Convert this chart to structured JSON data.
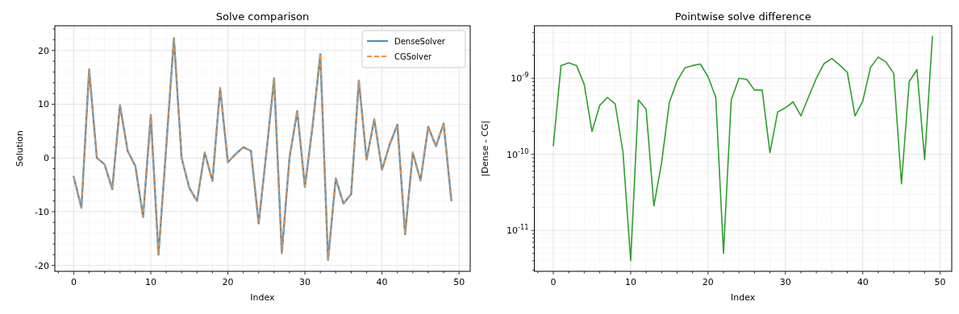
{
  "chart_data": [
    {
      "type": "line",
      "title": "Solve comparison",
      "xlabel": "Index",
      "ylabel": "Solution",
      "x": [
        0,
        1,
        2,
        3,
        4,
        5,
        6,
        7,
        8,
        9,
        10,
        11,
        12,
        13,
        14,
        15,
        16,
        17,
        18,
        19,
        20,
        21,
        22,
        23,
        24,
        25,
        26,
        27,
        28,
        29,
        30,
        31,
        32,
        33,
        34,
        35,
        36,
        37,
        38,
        39,
        40,
        41,
        42,
        43,
        44,
        45,
        46,
        47,
        48,
        49
      ],
      "series": [
        {
          "name": "DenseSolver",
          "color": "#4a90c2",
          "line_style": "solid",
          "values": [
            -3.5,
            -9.3,
            16.5,
            0,
            -1.2,
            -5.8,
            9.8,
            1.3,
            -1.5,
            -11,
            8,
            -18,
            2,
            22.3,
            0,
            -5.6,
            -8,
            1,
            -4.3,
            13,
            -0.8,
            0.7,
            2,
            1.3,
            -12.2,
            1,
            14.8,
            -17.7,
            0,
            8.7,
            -5.4,
            6,
            19.3,
            -19,
            -3.8,
            -8.5,
            -6.7,
            14.4,
            -0.3,
            7.2,
            -2.2,
            2.5,
            6.2,
            -14.2,
            1,
            -4.2,
            5.8,
            2.2,
            6.4,
            -7.9
          ]
        },
        {
          "name": "CGSolver",
          "color": "#f0913f",
          "line_style": "dashed",
          "values": [
            -3.5,
            -9.3,
            16.5,
            0,
            -1.2,
            -5.8,
            9.8,
            1.3,
            -1.5,
            -11,
            8,
            -18,
            2,
            22.3,
            0,
            -5.6,
            -8,
            1,
            -4.3,
            13,
            -0.8,
            0.7,
            2,
            1.3,
            -12.2,
            1,
            14.8,
            -17.7,
            0,
            8.7,
            -5.4,
            6,
            19.3,
            -19,
            -3.8,
            -8.5,
            -6.7,
            14.4,
            -0.3,
            7.2,
            -2.2,
            2.5,
            6.2,
            -14.2,
            1,
            -4.2,
            5.8,
            2.2,
            6.4,
            -7.9
          ]
        }
      ],
      "xlim": [
        -2.45,
        51.45
      ],
      "ylim": [
        -21.1,
        24.6
      ],
      "xticks": [
        0,
        10,
        20,
        30,
        40,
        50,
        {
          "value": -2,
          "label": null
        },
        {
          "value": 2,
          "label": null
        },
        {
          "value": 4,
          "label": null
        },
        {
          "value": 6,
          "label": null
        },
        {
          "value": 8,
          "label": null
        },
        {
          "value": 12,
          "label": null
        },
        {
          "value": 14,
          "label": null
        },
        {
          "value": 16,
          "label": null
        },
        {
          "value": 18,
          "label": null
        },
        {
          "value": 22,
          "label": null
        },
        {
          "value": 24,
          "label": null
        },
        {
          "value": 26,
          "label": null
        },
        {
          "value": 28,
          "label": null
        },
        {
          "value": 32,
          "label": null
        },
        {
          "value": 34,
          "label": null
        },
        {
          "value": 36,
          "label": null
        },
        {
          "value": 38,
          "label": null
        },
        {
          "value": 42,
          "label": null
        },
        {
          "value": 44,
          "label": null
        },
        {
          "value": 46,
          "label": null
        },
        {
          "value": 48,
          "label": null
        }
      ],
      "yticks": [
        -20,
        -10,
        0,
        10,
        20,
        {
          "value": -18,
          "label": null
        },
        {
          "value": -16,
          "label": null
        },
        {
          "value": -14,
          "label": null
        },
        {
          "value": -12,
          "label": null
        },
        {
          "value": -8,
          "label": null
        },
        {
          "value": -6,
          "label": null
        },
        {
          "value": -4,
          "label": null
        },
        {
          "value": -2,
          "label": null
        },
        {
          "value": 2,
          "label": null
        },
        {
          "value": 4,
          "label": null
        },
        {
          "value": 6,
          "label": null
        },
        {
          "value": 8,
          "label": null
        },
        {
          "value": 12,
          "label": null
        },
        {
          "value": 14,
          "label": null
        },
        {
          "value": 16,
          "label": null
        },
        {
          "value": 18,
          "label": null
        },
        {
          "value": 22,
          "label": null
        },
        {
          "value": 24,
          "label": null
        }
      ],
      "grid": true,
      "legend": "top right"
    },
    {
      "type": "line",
      "title": "Pointwise solve difference",
      "xlabel": "Index",
      "ylabel": "|Dense - CG|",
      "log": "y",
      "x": [
        0,
        1,
        2,
        3,
        4,
        5,
        6,
        7,
        8,
        9,
        10,
        11,
        12,
        13,
        14,
        15,
        16,
        17,
        18,
        19,
        20,
        21,
        22,
        23,
        24,
        25,
        26,
        27,
        28,
        29,
        30,
        31,
        32,
        33,
        34,
        35,
        36,
        37,
        38,
        39,
        40,
        41,
        42,
        43,
        44,
        45,
        46,
        47,
        48,
        49
      ],
      "series": [
        {
          "color": "#2ca02c",
          "values": [
            1.3e-10,
            1.47e-09,
            1.6e-09,
            1.47e-09,
            8.3e-10,
            2e-10,
            4.4e-10,
            5.6e-10,
            4.6e-10,
            1.08e-10,
            4e-12,
            5.2e-10,
            3.9e-10,
            2.1e-11,
            7.8e-11,
            4.8e-10,
            9.2e-10,
            1.37e-09,
            1.47e-09,
            1.54e-09,
            1.05e-09,
            5.6e-10,
            5e-12,
            5.2e-10,
            1e-09,
            9.7e-10,
            7e-10,
            7e-10,
            1.05e-10,
            3.6e-10,
            4.1e-10,
            4.9e-10,
            3.2e-10,
            5.7e-10,
            1e-09,
            1.56e-09,
            1.82e-09,
            1.5e-09,
            1.2e-09,
            3.2e-10,
            5e-10,
            1.39e-09,
            1.9e-09,
            1.63e-09,
            1.16e-09,
            4.1e-11,
            9e-10,
            1.3e-09,
            8.5e-11,
            3.55e-09
          ]
        }
      ],
      "xlim": [
        -2.45,
        51.5
      ],
      "ylim": [
        2.9e-12,
        4.9e-09
      ],
      "xticks": [
        0,
        10,
        20,
        30,
        40,
        50,
        {
          "value": -2,
          "label": null
        },
        {
          "value": 2,
          "label": null
        },
        {
          "value": 4,
          "label": null
        },
        {
          "value": 6,
          "label": null
        },
        {
          "value": 8,
          "label": null
        },
        {
          "value": 12,
          "label": null
        },
        {
          "value": 14,
          "label": null
        },
        {
          "value": 16,
          "label": null
        },
        {
          "value": 18,
          "label": null
        },
        {
          "value": 22,
          "label": null
        },
        {
          "value": 24,
          "label": null
        },
        {
          "value": 26,
          "label": null
        },
        {
          "value": 28,
          "label": null
        },
        {
          "value": 32,
          "label": null
        },
        {
          "value": 34,
          "label": null
        },
        {
          "value": 36,
          "label": null
        },
        {
          "value": 38,
          "label": null
        },
        {
          "value": 42,
          "label": null
        },
        {
          "value": 44,
          "label": null
        },
        {
          "value": 46,
          "label": null
        },
        {
          "value": 48,
          "label": null
        }
      ],
      "yticks": [
        {
          "value": 1e-11,
          "label": "10$^{-11}$"
        },
        {
          "value": 1e-10,
          "label": "10$^{-10}$"
        },
        {
          "value": 1e-09,
          "label": "10$^{-9}$"
        },
        {
          "value": 3e-12,
          "label": null
        },
        {
          "value": 4e-12,
          "label": null
        },
        {
          "value": 5e-12,
          "label": null
        },
        {
          "value": 6e-12,
          "label": null
        },
        {
          "value": 7e-12,
          "label": null
        },
        {
          "value": 8e-12,
          "label": null
        },
        {
          "value": 9e-12,
          "label": null
        },
        {
          "value": 2e-11,
          "label": null
        },
        {
          "value": 3e-11,
          "label": null
        },
        {
          "value": 4e-11,
          "label": null
        },
        {
          "value": 5e-11,
          "label": null
        },
        {
          "value": 6e-11,
          "label": null
        },
        {
          "value": 7e-11,
          "label": null
        },
        {
          "value": 8e-11,
          "label": null
        },
        {
          "value": 9e-11,
          "label": null
        },
        {
          "value": 2e-10,
          "label": null
        },
        {
          "value": 3e-10,
          "label": null
        },
        {
          "value": 4e-10,
          "label": null
        },
        {
          "value": 5e-10,
          "label": null
        },
        {
          "value": 6e-10,
          "label": null
        },
        {
          "value": 7e-10,
          "label": null
        },
        {
          "value": 8e-10,
          "label": null
        },
        {
          "value": 9e-10,
          "label": null
        },
        {
          "value": 2e-09,
          "label": null
        },
        {
          "value": 3e-09,
          "label": null
        },
        {
          "value": 4e-09,
          "label": null
        }
      ],
      "grid": true
    }
  ]
}
